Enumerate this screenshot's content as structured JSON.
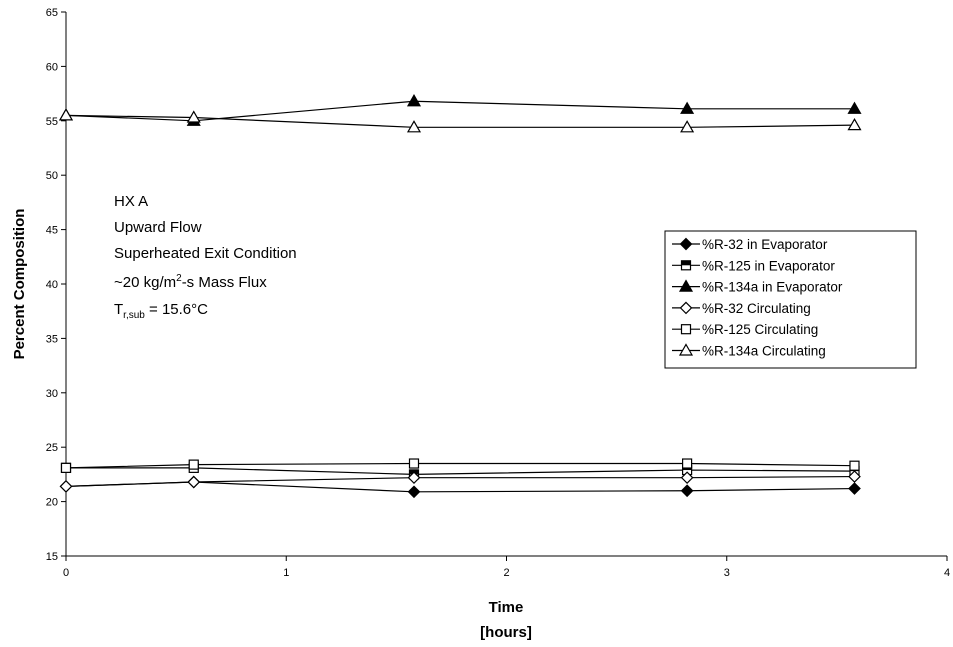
{
  "chart_data": {
    "type": "line",
    "xlabel": "Time",
    "xlabel_unit": "[hours]",
    "ylabel": "Percent Composition",
    "xlim": [
      0,
      4
    ],
    "ylim": [
      15,
      65
    ],
    "x_ticks": [
      "0",
      "1",
      "2",
      "3",
      "4"
    ],
    "y_ticks": [
      "15",
      "20",
      "25",
      "30",
      "35",
      "40",
      "45",
      "50",
      "55",
      "60",
      "65"
    ],
    "grid": false,
    "legend_position": "right",
    "annotation": {
      "line1": "HX A",
      "line2": "Upward Flow",
      "line3": "Superheated Exit Condition",
      "line4_pre": "~20 kg/m",
      "line4_sup": "2",
      "line4_post": "-s Mass Flux",
      "line5_pre": "T",
      "line5_sub": "r,sub",
      "line5_post": " = 15.6°C"
    },
    "x": [
      0,
      0.58,
      1.58,
      2.82,
      3.58
    ],
    "series": [
      {
        "name": "%R-32 in Evaporator",
        "marker": "diamond",
        "filled": true,
        "values": [
          21.4,
          21.8,
          20.9,
          21.0,
          21.2
        ]
      },
      {
        "name": "%R-125 in Evaporator",
        "marker": "square-half",
        "filled": true,
        "values": [
          23.1,
          23.1,
          22.5,
          22.9,
          22.8
        ]
      },
      {
        "name": "%R-134a in Evaporator",
        "marker": "triangle",
        "filled": true,
        "values": [
          55.5,
          55.0,
          56.8,
          56.1,
          56.1
        ]
      },
      {
        "name": "%R-32 Circulating",
        "marker": "diamond",
        "filled": false,
        "values": [
          21.4,
          21.8,
          22.2,
          22.2,
          22.3
        ]
      },
      {
        "name": "%R-125 Circulating",
        "marker": "square",
        "filled": false,
        "values": [
          23.1,
          23.4,
          23.5,
          23.5,
          23.3
        ]
      },
      {
        "name": "%R-134a Circulating",
        "marker": "triangle",
        "filled": false,
        "values": [
          55.5,
          55.3,
          54.4,
          54.4,
          54.6
        ]
      }
    ]
  }
}
